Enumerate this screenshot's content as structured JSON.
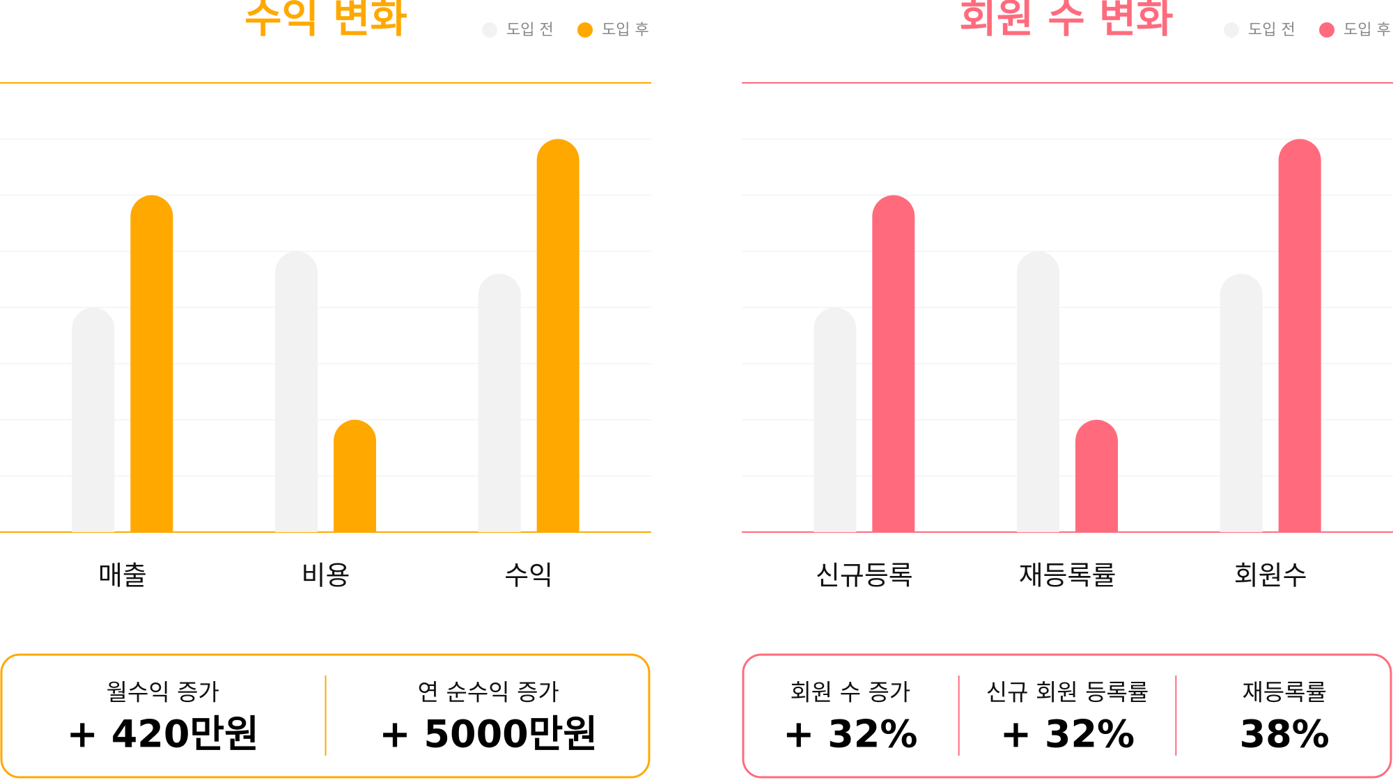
{
  "chart_data": [
    {
      "type": "bar",
      "title": "수익 변화",
      "accent": "#ffa800",
      "categories": [
        "매출",
        "비용",
        "수익"
      ],
      "series": [
        {
          "name": "도입 전",
          "color": "#f2f2f2",
          "values": [
            4,
            5,
            4.6
          ]
        },
        {
          "name": "도입 후",
          "color": "#ffa800",
          "values": [
            6,
            2,
            7
          ]
        }
      ],
      "ylim": [
        0,
        8
      ],
      "yticks": [
        0,
        1,
        2,
        3,
        4,
        5,
        6,
        7,
        8
      ],
      "grid": true,
      "summary": [
        {
          "label": "월수익 증가",
          "value": "+ 420만원"
        },
        {
          "label": "연 순수익 증가",
          "value": "+ 5000만원"
        }
      ]
    },
    {
      "type": "bar",
      "title": "회원 수 변화",
      "accent": "#ff6b7d",
      "categories": [
        "신규등록",
        "재등록률",
        "회원수"
      ],
      "series": [
        {
          "name": "도입 전",
          "color": "#f2f2f2",
          "values": [
            4,
            5,
            4.6
          ]
        },
        {
          "name": "도입 후",
          "color": "#ff6b7d",
          "values": [
            6,
            2,
            7
          ]
        }
      ],
      "ylim": [
        0,
        8
      ],
      "yticks": [
        0,
        1,
        2,
        3,
        4,
        5,
        6,
        7,
        8
      ],
      "grid": true,
      "summary": [
        {
          "label": "회원 수 증가",
          "value": "+ 32%"
        },
        {
          "label": "신규 회원 등록률",
          "value": "+ 32%"
        },
        {
          "label": "재등록률",
          "value": "38%"
        }
      ]
    }
  ]
}
